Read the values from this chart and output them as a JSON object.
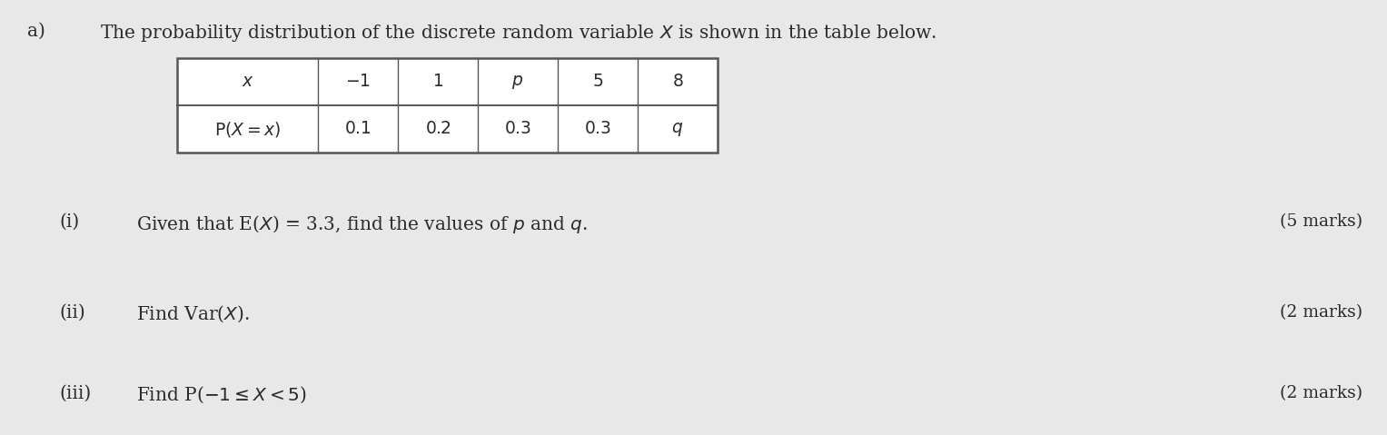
{
  "bg_color": "#e8e8e8",
  "label_a": "a)",
  "intro_text": "The probability distribution of the discrete random variable $X$ is shown in the table below.",
  "table": {
    "headers": [
      "$x$",
      "$-1$",
      "$1$",
      "$p$",
      "$5$",
      "$8$"
    ],
    "row_label": "$\\mathrm{P}(X=x)$",
    "row_values": [
      "$0.1$",
      "$0.2$",
      "$0.3$",
      "$0.3$",
      "$q$"
    ]
  },
  "questions": [
    {
      "num": "(i)",
      "text": "Given that E($X$) = 3.3, find the values of $p$ and $q$.",
      "marks": "(5 marks)"
    },
    {
      "num": "(ii)",
      "text": "Find Var($X$).",
      "marks": "(2 marks)"
    },
    {
      "num": "(iii)",
      "text": "Find P($-1 \\leq X < 5$)",
      "marks": "(2 marks)"
    }
  ],
  "font_size_intro": 14.5,
  "font_size_table": 13.5,
  "font_size_questions": 14.5,
  "font_size_marks": 13.5,
  "text_color": "#2a2a2a",
  "table_border_color": "#555555"
}
